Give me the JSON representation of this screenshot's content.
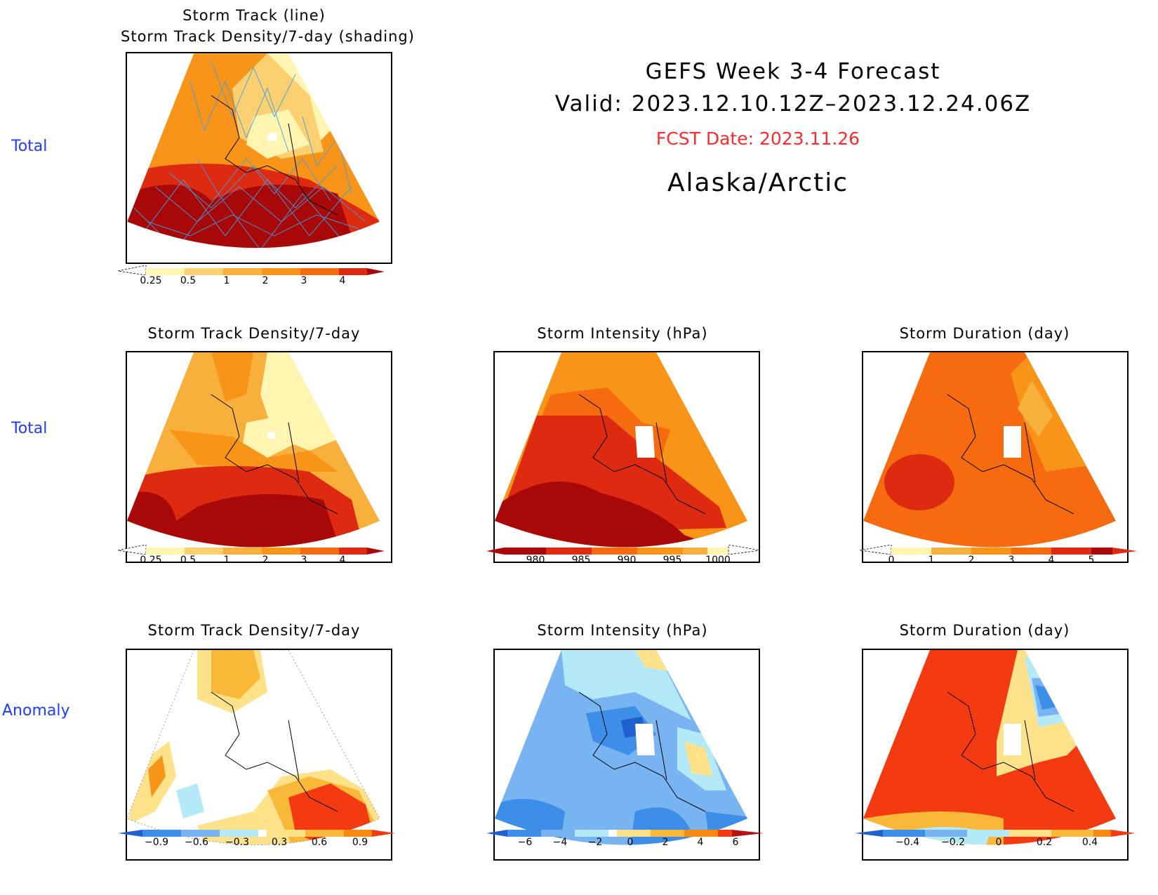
{
  "header": {
    "title": "GEFS Week 3-4 Forecast",
    "valid": "Valid: 2023.12.10.12Z–2023.12.24.06Z",
    "fcst_date": "FCST Date: 2023.11.26",
    "region": "Alaska/Arctic",
    "fcst_color": "#ff2a2a"
  },
  "row_labels": {
    "row1": "Total",
    "row2": "Total",
    "row3": "Anomaly",
    "color": "#1f3bff"
  },
  "panels": {
    "p1": {
      "title_line1": "Storm Track (line)",
      "title_line2": "Storm Track Density/7-day (shading)",
      "map": "density-total-with-tracks"
    },
    "p2": {
      "title": "Storm Track Density/7-day",
      "map": "density-total"
    },
    "p3": {
      "title": "Storm Intensity (hPa)",
      "map": "intensity-total"
    },
    "p4": {
      "title": "Storm Duration (day)",
      "map": "duration-total"
    },
    "p5": {
      "title": "Storm Track Density/7-day",
      "map": "density-anomaly"
    },
    "p6": {
      "title": "Storm Intensity (hPa)",
      "map": "intensity-anomaly"
    },
    "p7": {
      "title": "Storm Duration (day)",
      "map": "duration-anomaly"
    }
  },
  "colorbars": {
    "density_total": {
      "labels": [
        "0.25",
        "0.5",
        "1",
        "2",
        "3",
        "4"
      ],
      "colors": [
        "#fff5b0",
        "#fcd070",
        "#f8b03c",
        "#f89418",
        "#f66a10",
        "#de2a10",
        "#a80808"
      ]
    },
    "intensity_total": {
      "labels": [
        "980",
        "985",
        "990",
        "995",
        "1000"
      ],
      "colors": [
        "#a80808",
        "#de2a10",
        "#f66a10",
        "#f89418",
        "#f8b03c",
        "#fff5b0"
      ]
    },
    "duration_total": {
      "labels": [
        "0",
        "1",
        "2",
        "3",
        "4",
        "5"
      ],
      "colors": [
        "#fff5b0",
        "#f8b03c",
        "#f89418",
        "#f66a10",
        "#de2a10",
        "#a80808"
      ]
    },
    "density_anomaly": {
      "labels": [
        "−0.9",
        "−0.6",
        "−0.3",
        "0.3",
        "0.6",
        "0.9"
      ],
      "colors": [
        "#1f5fcf",
        "#3c8ee8",
        "#78b4f2",
        "#b4eaf8",
        "#ffffff",
        "#fde28a",
        "#f9b838",
        "#f68a10",
        "#f43a10"
      ]
    },
    "intensity_anomaly": {
      "labels": [
        "−6",
        "−4",
        "−2",
        "0",
        "2",
        "4",
        "6"
      ],
      "colors": [
        "#1f5fcf",
        "#3c8ee8",
        "#78b4f2",
        "#b4eaf8",
        "#ffffff",
        "#fde28a",
        "#f9b838",
        "#f68a10",
        "#f43a10",
        "#b81010"
      ]
    },
    "duration_anomaly": {
      "labels": [
        "−0.4",
        "−0.2",
        "0",
        "0.2",
        "0.4"
      ],
      "colors": [
        "#1f5fcf",
        "#3c8ee8",
        "#78b4f2",
        "#b4eaf8",
        "#fde28a",
        "#f9b838",
        "#f68a10",
        "#f43a10"
      ]
    }
  }
}
